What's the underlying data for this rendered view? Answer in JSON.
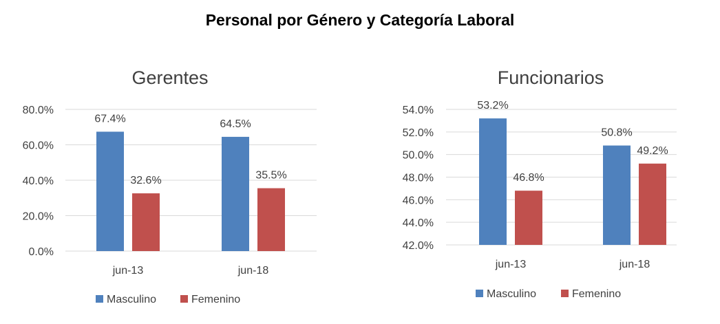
{
  "page_title": "Personal por Género y Categoría Laboral",
  "colors": {
    "masculino": "#4f81bd",
    "femenino": "#c0504d"
  },
  "chart_data": [
    {
      "type": "bar",
      "title": "Gerentes",
      "categories": [
        "jun-13",
        "jun-18"
      ],
      "series": [
        {
          "name": "Masculino",
          "values": [
            67.4,
            64.5
          ],
          "labels": [
            "67.4%",
            "64.5%"
          ]
        },
        {
          "name": "Femenino",
          "values": [
            32.6,
            35.5
          ],
          "labels": [
            "32.6%",
            "35.5%"
          ]
        }
      ],
      "ylim": [
        0,
        80
      ],
      "yticks": [
        "0.0%",
        "20.0%",
        "40.0%",
        "60.0%",
        "80.0%"
      ],
      "grid": true,
      "legend": "bottom"
    },
    {
      "type": "bar",
      "title": "Funcionarios",
      "categories": [
        "jun-13",
        "jun-18"
      ],
      "series": [
        {
          "name": "Masculino",
          "values": [
            53.2,
            50.8
          ],
          "labels": [
            "53.2%",
            "50.8%"
          ]
        },
        {
          "name": "Femenino",
          "values": [
            46.8,
            49.2
          ],
          "labels": [
            "46.8%",
            "49.2%"
          ]
        }
      ],
      "ylim": [
        42,
        54
      ],
      "yticks": [
        "42.0%",
        "44.0%",
        "46.0%",
        "48.0%",
        "50.0%",
        "52.0%",
        "54.0%"
      ],
      "grid": true,
      "legend": "bottom"
    }
  ]
}
